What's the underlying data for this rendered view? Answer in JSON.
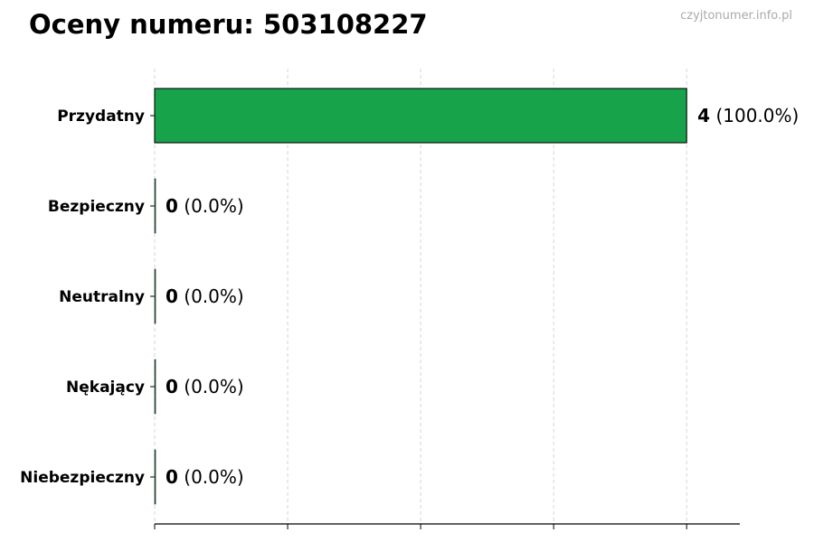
{
  "title": "Oceny numeru: 503108227",
  "watermark": "czyjtonumer.info.pl",
  "chart_data": {
    "type": "bar",
    "orientation": "horizontal",
    "title": "Oceny numeru: 503108227",
    "categories": [
      "Przydatny",
      "Bezpieczny",
      "Neutralny",
      "Nękający",
      "Niebezpieczny"
    ],
    "values": [
      4,
      0,
      0,
      0,
      0
    ],
    "data_labels": [
      {
        "count": "4",
        "percent": "(100.0%)"
      },
      {
        "count": "0",
        "percent": "(0.0%)"
      },
      {
        "count": "0",
        "percent": "(0.0%)"
      },
      {
        "count": "0",
        "percent": "(0.0%)"
      },
      {
        "count": "0",
        "percent": "(0.0%)"
      }
    ],
    "colors": [
      "#16a34a",
      "#16a34a",
      "#16a34a",
      "#16a34a",
      "#16a34a"
    ],
    "xlim": [
      0,
      4.4
    ],
    "xticks": [
      0,
      1,
      2,
      3,
      4
    ],
    "xtick_labels_shown": false,
    "grid": "x, dashed",
    "xlabel": "",
    "ylabel": ""
  }
}
